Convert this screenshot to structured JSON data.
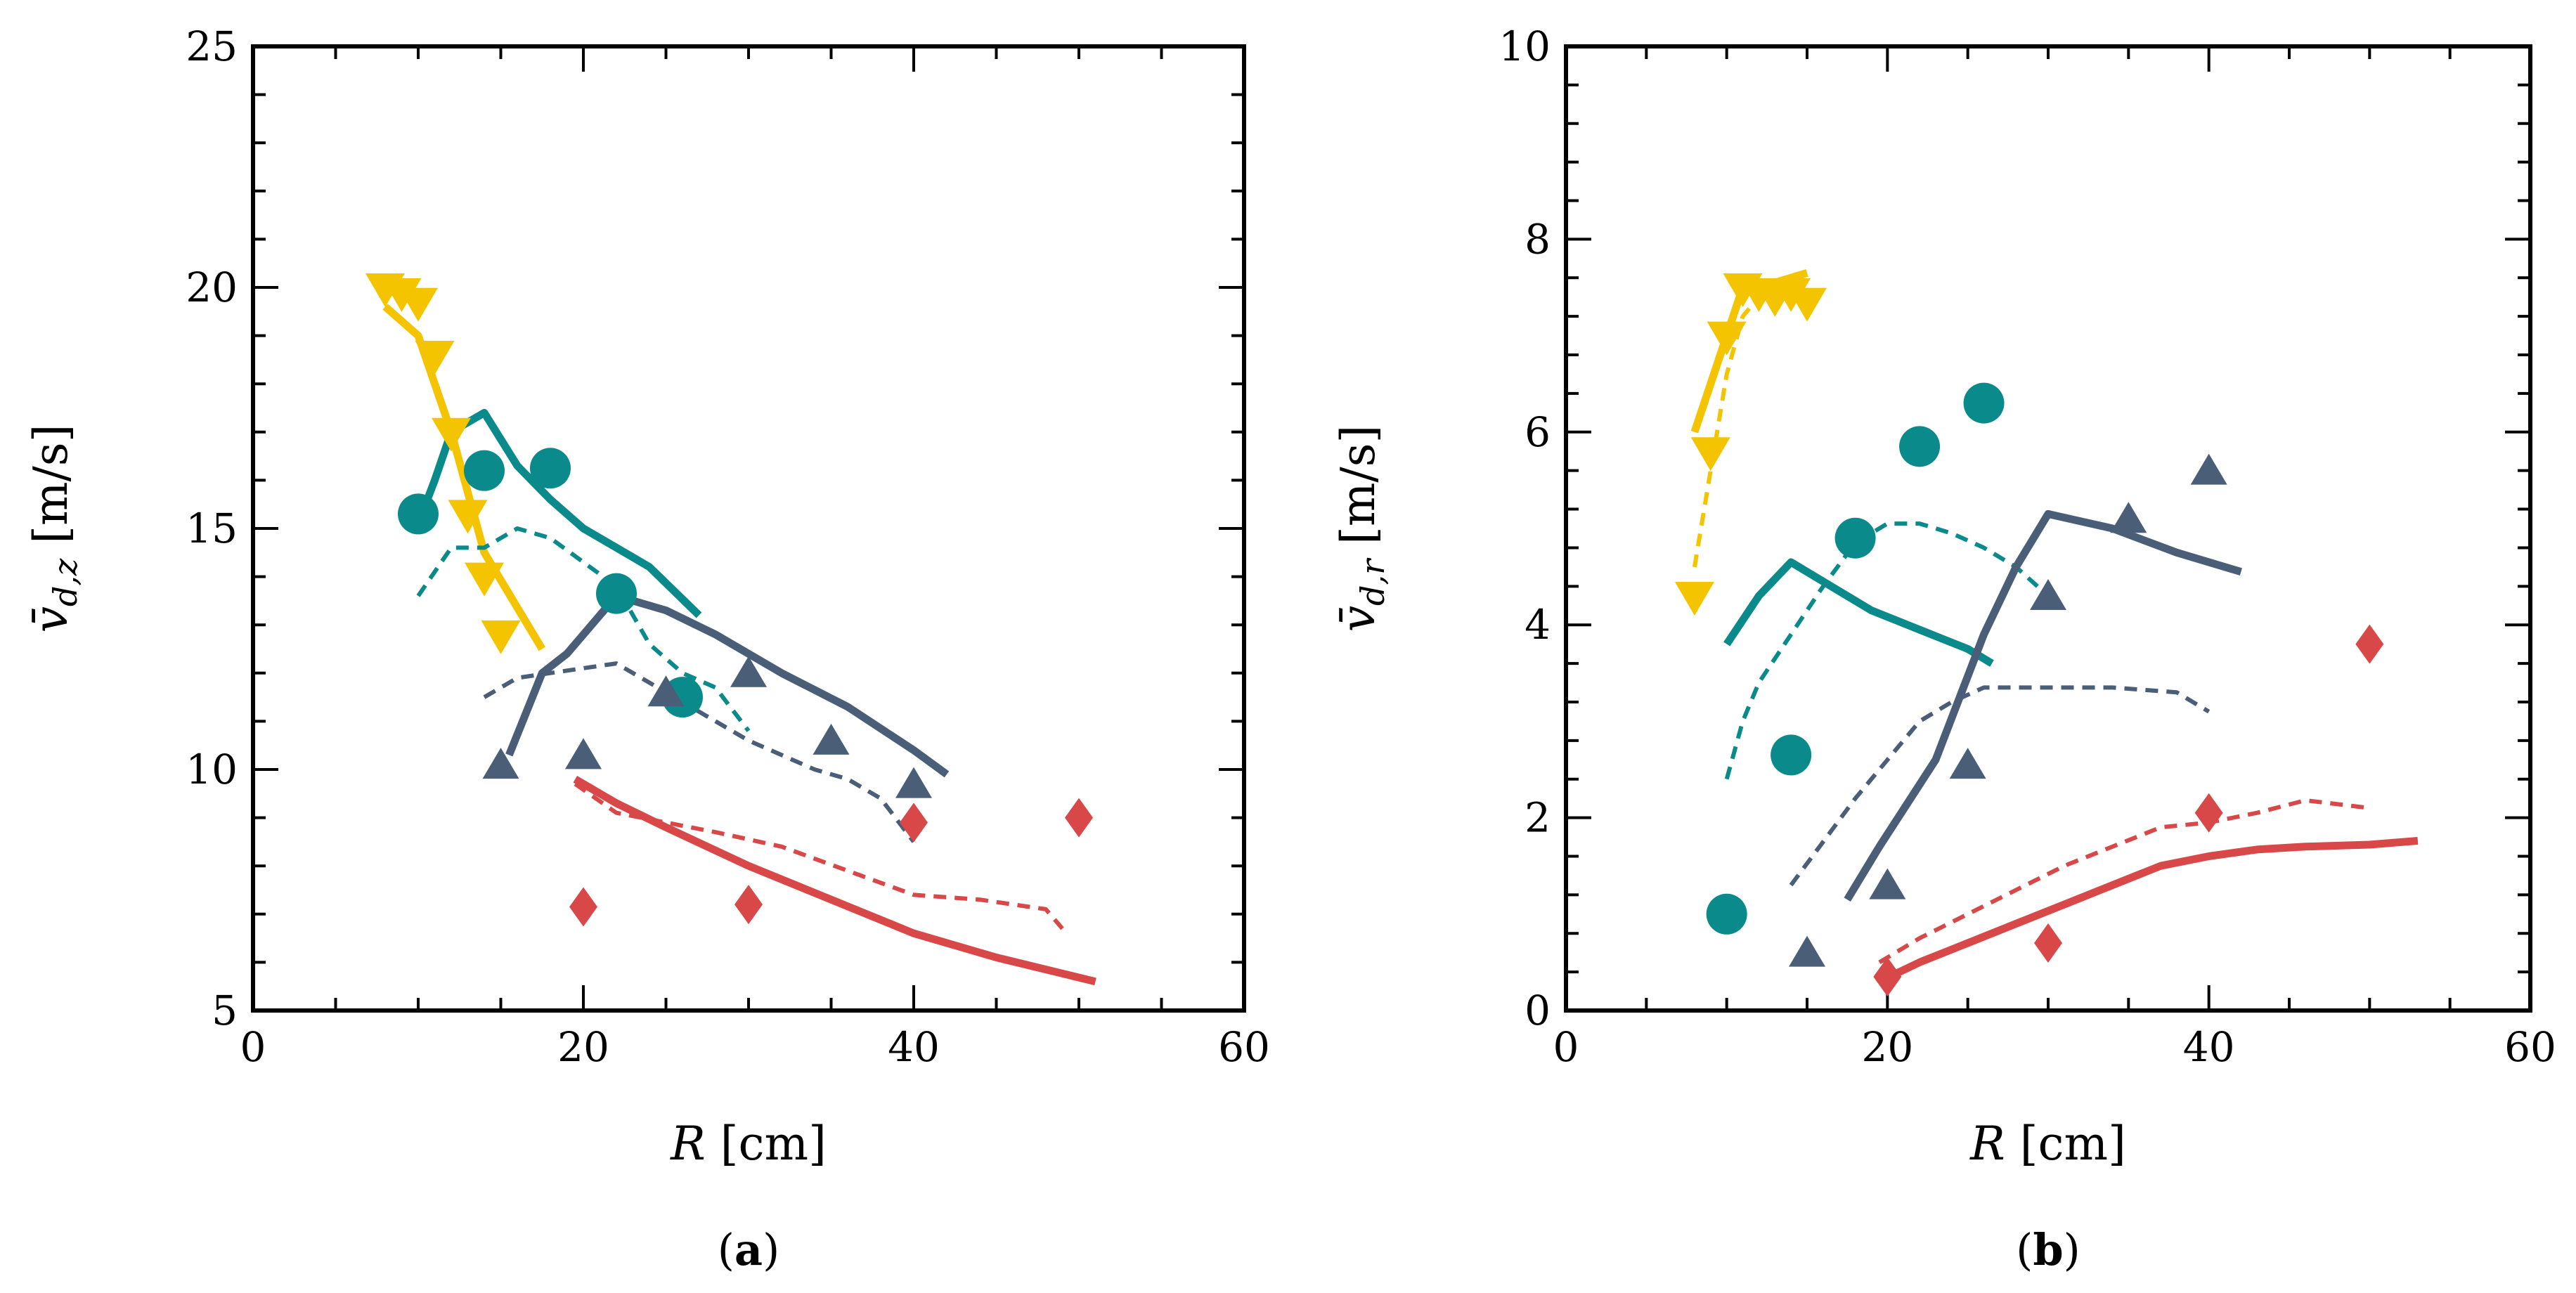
{
  "chart_data": [
    {
      "type": "scatter",
      "panel_label": "(a)",
      "xlabel": "R [cm]",
      "ylabel": "v̄_{d,z} [m/s]",
      "ylabel_main": "v̄",
      "ylabel_sub": "d,z",
      "ylabel_unit": "[m/s]",
      "xlim": [
        0,
        60
      ],
      "ylim": [
        5,
        25
      ],
      "xticks": [
        0,
        20,
        40,
        60
      ],
      "yticks": [
        5,
        10,
        15,
        20,
        25
      ],
      "xtick_labels": [
        "0",
        "20",
        "40",
        "60"
      ],
      "ytick_labels": [
        "5",
        "10",
        "15",
        "20",
        "25"
      ],
      "series": [
        {
          "name": "yellow",
          "color": "#f4c400",
          "marker": "triangle-down",
          "points": [
            [
              8,
              20.0
            ],
            [
              9,
              19.9
            ],
            [
              10,
              19.7
            ],
            [
              11,
              18.6
            ],
            [
              12,
              17.0
            ],
            [
              13,
              15.3
            ],
            [
              14,
              14.0
            ],
            [
              15,
              12.8
            ]
          ],
          "solid": [
            [
              8,
              19.6
            ],
            [
              10,
              19.0
            ],
            [
              12,
              17.0
            ],
            [
              14,
              14.5
            ],
            [
              17.5,
              12.5
            ]
          ],
          "dashed": []
        },
        {
          "name": "teal",
          "color": "#0a8a8a",
          "marker": "circle",
          "points": [
            [
              10,
              15.3
            ],
            [
              14,
              16.2
            ],
            [
              18,
              16.25
            ],
            [
              22,
              13.65
            ],
            [
              26,
              11.5
            ]
          ],
          "solid": [
            [
              10,
              15.1
            ],
            [
              11,
              16.0
            ],
            [
              12,
              17.0
            ],
            [
              14,
              17.4
            ],
            [
              16,
              16.3
            ],
            [
              18,
              15.6
            ],
            [
              20,
              15.0
            ],
            [
              22,
              14.6
            ],
            [
              24,
              14.2
            ],
            [
              27,
              13.2
            ]
          ],
          "dashed": [
            [
              10,
              13.6
            ],
            [
              12,
              14.6
            ],
            [
              14,
              14.6
            ],
            [
              16,
              15.0
            ],
            [
              18,
              14.8
            ],
            [
              20,
              14.3
            ],
            [
              22,
              13.8
            ],
            [
              24,
              12.6
            ],
            [
              26,
              12.0
            ],
            [
              28,
              11.7
            ],
            [
              30,
              10.8
            ]
          ]
        },
        {
          "name": "slate",
          "color": "#4a5e78",
          "marker": "triangle-up",
          "points": [
            [
              15,
              10.1
            ],
            [
              20,
              10.3
            ],
            [
              25,
              11.6
            ],
            [
              30,
              12.0
            ],
            [
              35,
              10.6
            ],
            [
              40,
              9.7
            ]
          ],
          "solid": [
            [
              15.5,
              10.3
            ],
            [
              17.5,
              12.0
            ],
            [
              19,
              12.4
            ],
            [
              20.5,
              13.0
            ],
            [
              22,
              13.6
            ],
            [
              25,
              13.3
            ],
            [
              28,
              12.8
            ],
            [
              32,
              12.0
            ],
            [
              36,
              11.3
            ],
            [
              40,
              10.4
            ],
            [
              42,
              9.9
            ]
          ],
          "dashed": [
            [
              14,
              11.5
            ],
            [
              16,
              11.9
            ],
            [
              18,
              12.0
            ],
            [
              20,
              12.1
            ],
            [
              22,
              12.2
            ],
            [
              24,
              11.8
            ],
            [
              26,
              11.4
            ],
            [
              28,
              11.0
            ],
            [
              30,
              10.6
            ],
            [
              32,
              10.3
            ],
            [
              34,
              10.0
            ],
            [
              36,
              9.8
            ],
            [
              38,
              9.4
            ],
            [
              40,
              8.5
            ]
          ]
        },
        {
          "name": "red",
          "color": "#d94848",
          "marker": "diamond",
          "points": [
            [
              20,
              7.15
            ],
            [
              30,
              7.2
            ],
            [
              40,
              8.9
            ],
            [
              50,
              9.0
            ]
          ],
          "solid": [
            [
              19.5,
              9.8
            ],
            [
              22,
              9.3
            ],
            [
              25,
              8.8
            ],
            [
              30,
              8.0
            ],
            [
              35,
              7.3
            ],
            [
              40,
              6.6
            ],
            [
              45,
              6.1
            ],
            [
              51,
              5.6
            ]
          ],
          "dashed": [
            [
              19.5,
              9.7
            ],
            [
              22,
              9.1
            ],
            [
              25,
              8.9
            ],
            [
              28,
              8.7
            ],
            [
              32,
              8.4
            ],
            [
              36,
              7.9
            ],
            [
              40,
              7.4
            ],
            [
              44,
              7.3
            ],
            [
              48,
              7.1
            ],
            [
              49,
              6.7
            ]
          ]
        }
      ]
    },
    {
      "type": "scatter",
      "panel_label": "(b)",
      "xlabel": "R [cm]",
      "ylabel": "v̄_{d,r} [m/s]",
      "ylabel_main": "v̄",
      "ylabel_sub": "d,r",
      "ylabel_unit": "[m/s]",
      "xlim": [
        0,
        60
      ],
      "ylim": [
        0,
        10
      ],
      "xticks": [
        0,
        20,
        40,
        60
      ],
      "yticks": [
        0,
        2,
        4,
        6,
        8,
        10
      ],
      "xtick_labels": [
        "0",
        "20",
        "40",
        "60"
      ],
      "ytick_labels": [
        "0",
        "2",
        "4",
        "6",
        "8",
        "10"
      ],
      "series": [
        {
          "name": "yellow",
          "color": "#f4c400",
          "marker": "triangle-down",
          "points": [
            [
              8,
              4.3
            ],
            [
              9,
              5.8
            ],
            [
              10,
              7.0
            ],
            [
              11,
              7.5
            ],
            [
              12,
              7.45
            ],
            [
              13,
              7.4
            ],
            [
              14,
              7.45
            ],
            [
              15,
              7.35
            ]
          ],
          "solid": [
            [
              8,
              6.0
            ],
            [
              9,
              6.5
            ],
            [
              10,
              7.0
            ],
            [
              11,
              7.5
            ],
            [
              12,
              7.5
            ],
            [
              13,
              7.55
            ],
            [
              14,
              7.6
            ],
            [
              15,
              7.65
            ]
          ],
          "dashed": [
            [
              8,
              4.6
            ],
            [
              9,
              5.6
            ],
            [
              10,
              6.6
            ],
            [
              11,
              7.2
            ],
            [
              12,
              7.4
            ],
            [
              14,
              7.45
            ]
          ]
        },
        {
          "name": "teal",
          "color": "#0a8a8a",
          "marker": "circle",
          "points": [
            [
              10,
              1.0
            ],
            [
              14,
              2.65
            ],
            [
              18,
              4.9
            ],
            [
              22,
              5.85
            ],
            [
              26,
              6.3
            ]
          ],
          "solid": [
            [
              10,
              3.8
            ],
            [
              12,
              4.3
            ],
            [
              14,
              4.65
            ],
            [
              16,
              4.45
            ],
            [
              19,
              4.15
            ],
            [
              22,
              3.95
            ],
            [
              25,
              3.75
            ],
            [
              26.5,
              3.6
            ]
          ],
          "dashed": [
            [
              10,
              2.4
            ],
            [
              11,
              3.0
            ],
            [
              12,
              3.4
            ],
            [
              14,
              3.9
            ],
            [
              16,
              4.4
            ],
            [
              18,
              4.85
            ],
            [
              20,
              5.05
            ],
            [
              22,
              5.05
            ],
            [
              24,
              4.95
            ],
            [
              26,
              4.8
            ],
            [
              28,
              4.6
            ],
            [
              30,
              4.3
            ]
          ]
        },
        {
          "name": "slate",
          "color": "#4a5e78",
          "marker": "triangle-up",
          "points": [
            [
              15,
              0.6
            ],
            [
              20,
              1.3
            ],
            [
              25,
              2.55
            ],
            [
              30,
              4.3
            ],
            [
              35,
              5.1
            ],
            [
              40,
              5.6
            ]
          ],
          "solid": [
            [
              17.5,
              1.15
            ],
            [
              19.5,
              1.7
            ],
            [
              23,
              2.6
            ],
            [
              26,
              3.9
            ],
            [
              28,
              4.6
            ],
            [
              30,
              5.15
            ],
            [
              34,
              5.0
            ],
            [
              38,
              4.75
            ],
            [
              42,
              4.55
            ]
          ],
          "dashed": [
            [
              14,
              1.3
            ],
            [
              16,
              1.75
            ],
            [
              18,
              2.2
            ],
            [
              20,
              2.6
            ],
            [
              22,
              3.0
            ],
            [
              24,
              3.2
            ],
            [
              26,
              3.35
            ],
            [
              28,
              3.35
            ],
            [
              30,
              3.35
            ],
            [
              34,
              3.35
            ],
            [
              38,
              3.3
            ],
            [
              40,
              3.1
            ]
          ]
        },
        {
          "name": "red",
          "color": "#d94848",
          "marker": "diamond",
          "points": [
            [
              20,
              0.35
            ],
            [
              30,
              0.7
            ],
            [
              40,
              2.05
            ],
            [
              50,
              3.8
            ]
          ],
          "solid": [
            [
              19.5,
              0.3
            ],
            [
              22,
              0.5
            ],
            [
              25,
              0.7
            ],
            [
              28,
              0.9
            ],
            [
              31,
              1.1
            ],
            [
              34,
              1.3
            ],
            [
              37,
              1.5
            ],
            [
              40,
              1.6
            ],
            [
              43,
              1.67
            ],
            [
              46,
              1.7
            ],
            [
              50,
              1.72
            ],
            [
              53,
              1.76
            ]
          ],
          "dashed": [
            [
              19.5,
              0.5
            ],
            [
              22,
              0.75
            ],
            [
              25,
              1.0
            ],
            [
              28,
              1.25
            ],
            [
              31,
              1.5
            ],
            [
              34,
              1.7
            ],
            [
              37,
              1.9
            ],
            [
              40,
              1.95
            ],
            [
              43,
              2.05
            ],
            [
              46,
              2.18
            ],
            [
              49,
              2.12
            ],
            [
              50,
              2.1
            ]
          ]
        }
      ]
    }
  ]
}
